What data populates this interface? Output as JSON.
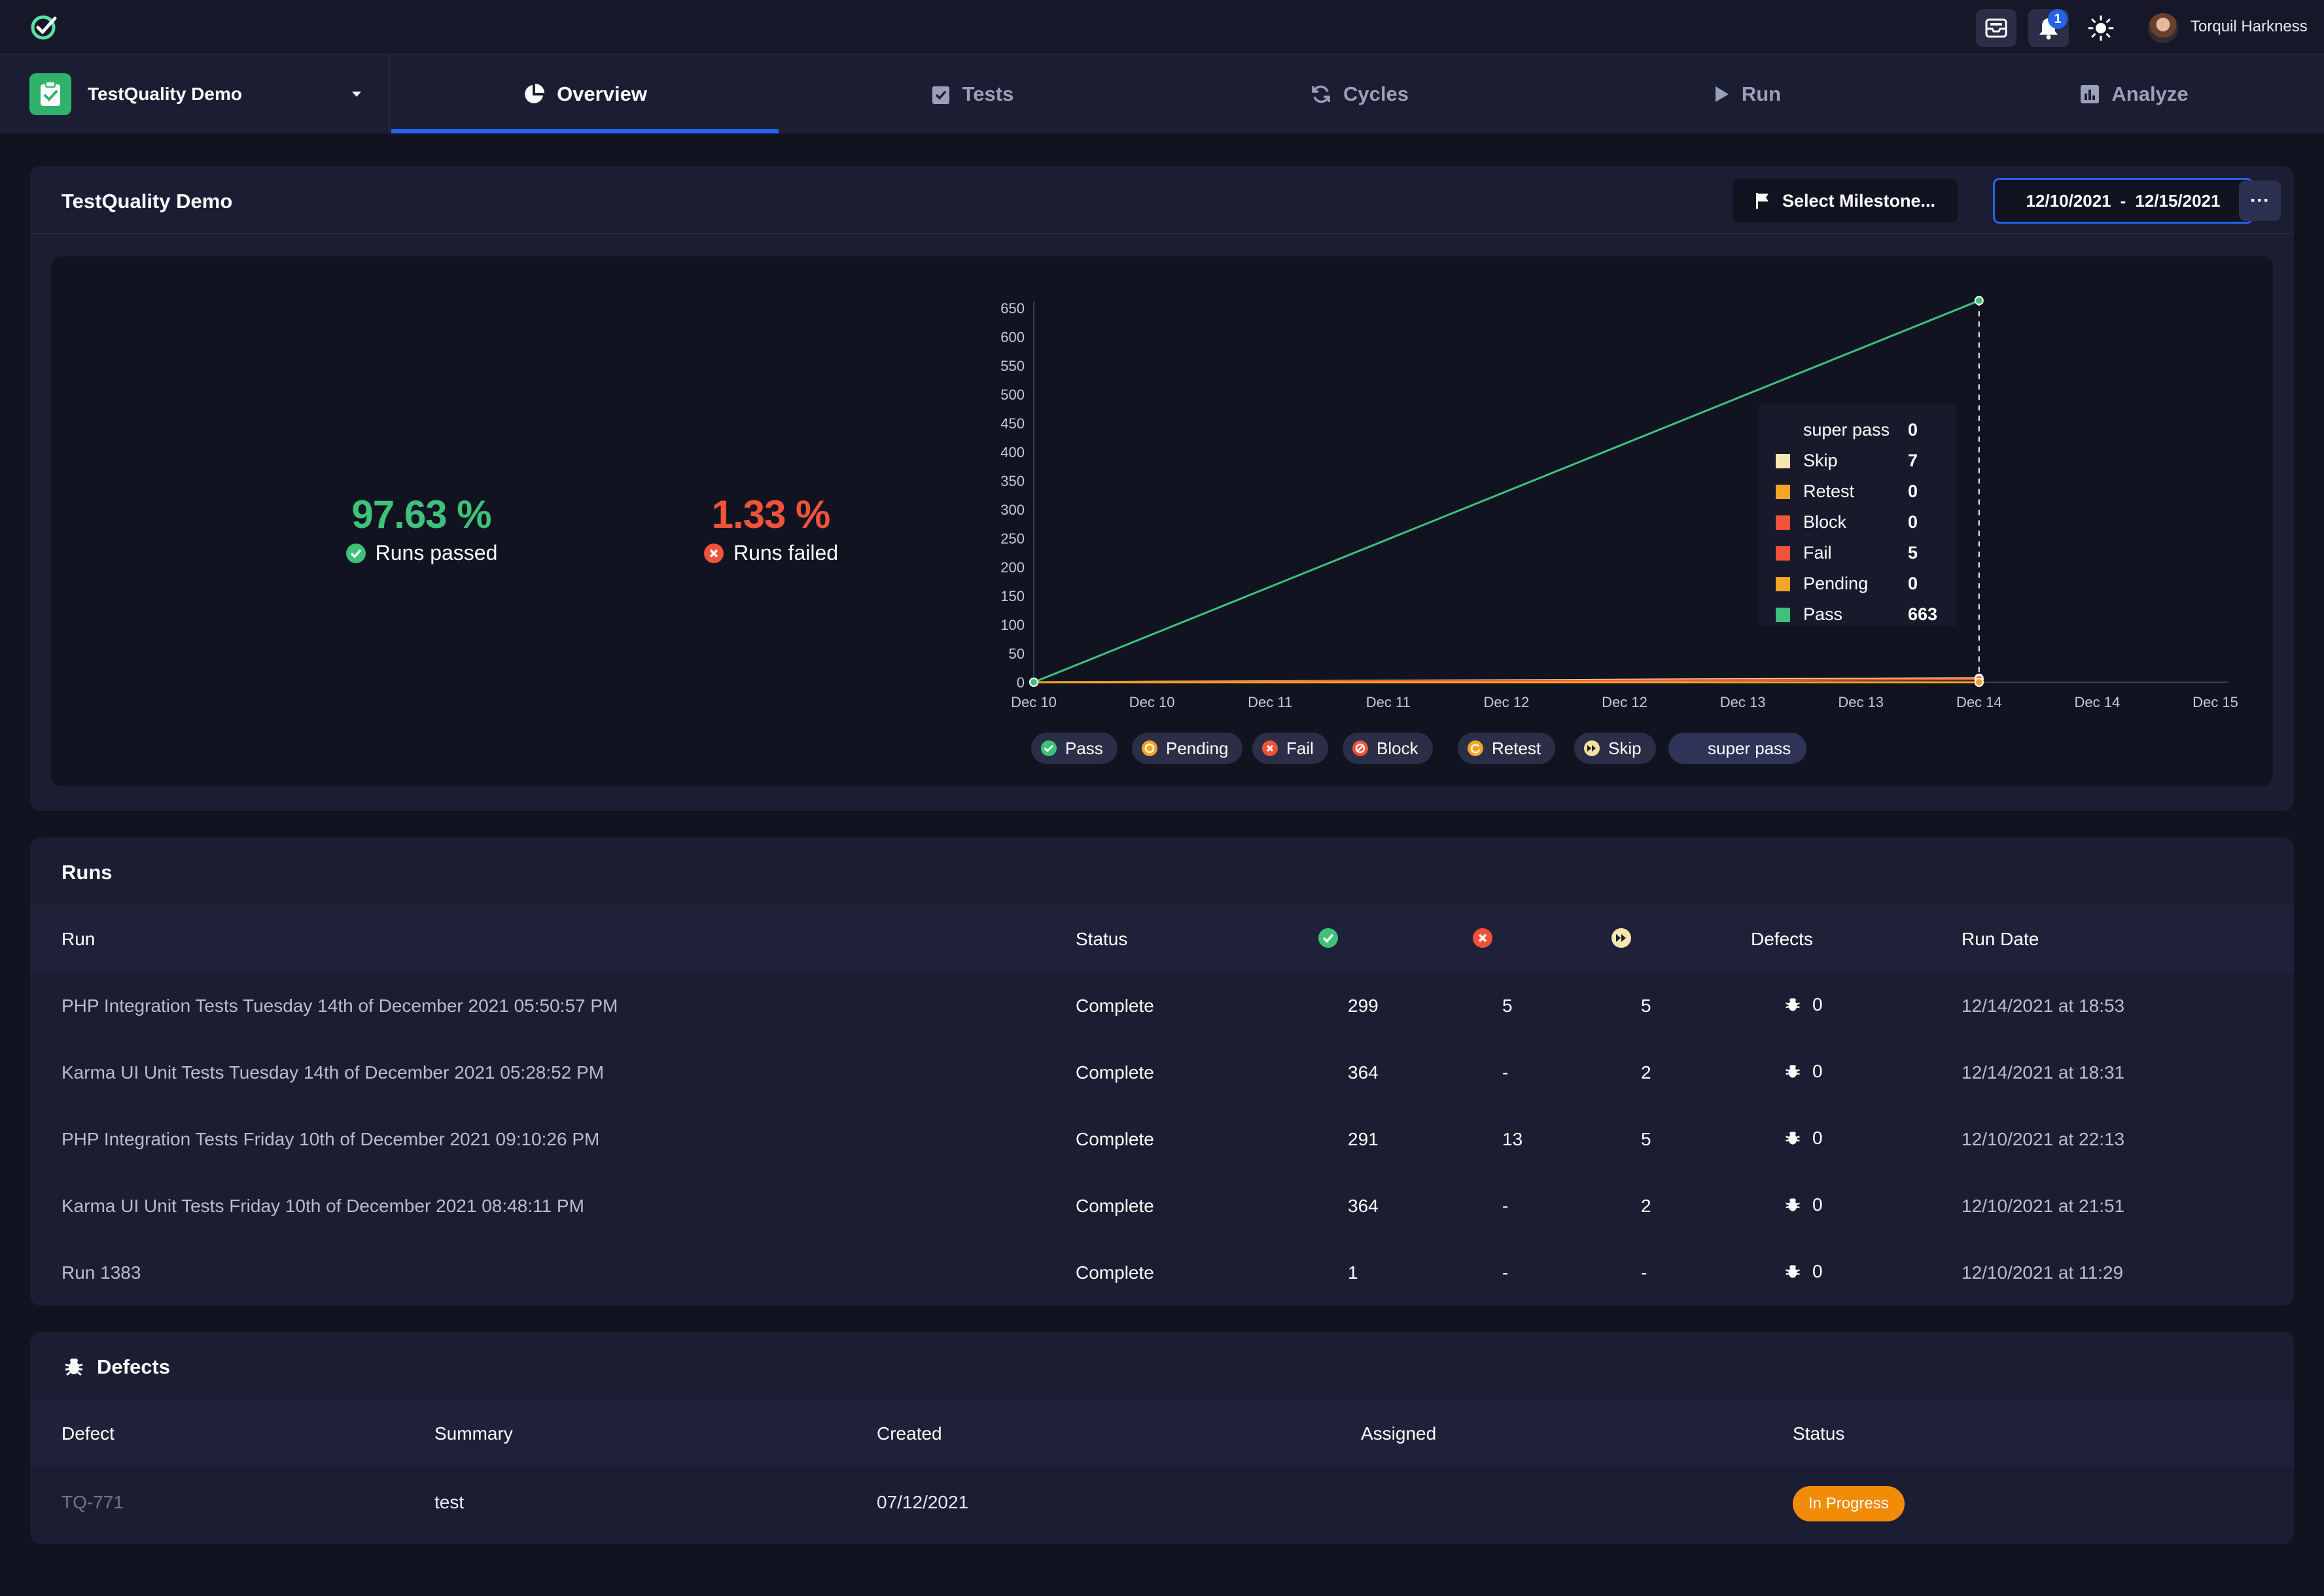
{
  "topbar": {
    "user_name": "Torquil Harkness",
    "notification_count": "1",
    "icons": [
      "app-logo-icon",
      "inbox-icon",
      "bell-icon",
      "sun-icon"
    ]
  },
  "nav": {
    "project_name": "TestQuality Demo",
    "tabs": [
      {
        "label": "Overview",
        "icon": "pie-chart-icon",
        "active": true
      },
      {
        "label": "Tests",
        "icon": "clipboard-check-icon",
        "active": false
      },
      {
        "label": "Cycles",
        "icon": "cycle-icon",
        "active": false
      },
      {
        "label": "Run",
        "icon": "play-icon",
        "active": false
      },
      {
        "label": "Analyze",
        "icon": "bar-chart-icon",
        "active": false
      }
    ]
  },
  "overview": {
    "title": "TestQuality Demo",
    "milestone_label": "Select Milestone...",
    "date_start": "12/10/2021",
    "date_separator": "-",
    "date_end": "12/15/2021",
    "more_label": "···",
    "runs_passed_value": "97.63 %",
    "runs_passed_label": "Runs passed",
    "runs_failed_value": "1.33 %",
    "runs_failed_label": "Runs failed"
  },
  "chart_data": {
    "type": "line",
    "x": [
      "Dec 10",
      "Dec 10",
      "Dec 11",
      "Dec 11",
      "Dec 12",
      "Dec 12",
      "Dec 13",
      "Dec 13",
      "Dec 14",
      "Dec 14",
      "Dec 15"
    ],
    "x_positions_index": [
      0,
      8
    ],
    "yticks": [
      0,
      50,
      100,
      150,
      200,
      250,
      300,
      350,
      400,
      450,
      500,
      550,
      600,
      650
    ],
    "ylim": [
      0,
      650
    ],
    "series": [
      {
        "name": "Pass",
        "color": "#3ec27a",
        "points": [
          [
            0,
            0
          ],
          [
            8,
            663
          ]
        ]
      },
      {
        "name": "Pending",
        "color": "#f5a524",
        "points": [
          [
            0,
            0
          ],
          [
            8,
            0
          ]
        ]
      },
      {
        "name": "Fail",
        "color": "#f0533a",
        "points": [
          [
            0,
            0
          ],
          [
            8,
            5
          ]
        ]
      },
      {
        "name": "Block",
        "color": "#f0533a",
        "points": [
          [
            0,
            0
          ],
          [
            8,
            0
          ]
        ]
      },
      {
        "name": "Retest",
        "color": "#f5a524",
        "points": [
          [
            0,
            0
          ],
          [
            8,
            0
          ]
        ]
      },
      {
        "name": "Skip",
        "color": "#f5e0a0",
        "points": [
          [
            0,
            0
          ],
          [
            8,
            7
          ]
        ]
      },
      {
        "name": "super pass",
        "color": "#2a2e47",
        "points": [
          [
            0,
            0
          ],
          [
            8,
            0
          ]
        ]
      }
    ],
    "legend": [
      {
        "label": "Pass",
        "icon": "check-circle-icon",
        "color": "#3ec27a"
      },
      {
        "label": "Pending",
        "icon": "clock-icon",
        "color": "#f5a524"
      },
      {
        "label": "Fail",
        "icon": "x-circle-icon",
        "color": "#f0533a"
      },
      {
        "label": "Block",
        "icon": "block-icon",
        "color": "#f0533a"
      },
      {
        "label": "Retest",
        "icon": "retest-icon",
        "color": "#f5a524"
      },
      {
        "label": "Skip",
        "icon": "skip-icon",
        "color": "#f5e0a0"
      },
      {
        "label": "super pass",
        "icon": "",
        "color": ""
      }
    ],
    "tooltip": [
      {
        "label": "super pass",
        "value": "0",
        "color": ""
      },
      {
        "label": "Skip",
        "value": "7",
        "color": "#f7e6b0"
      },
      {
        "label": "Retest",
        "value": "0",
        "color": "#f5a524"
      },
      {
        "label": "Block",
        "value": "0",
        "color": "#f0533a"
      },
      {
        "label": "Fail",
        "value": "5",
        "color": "#f0533a"
      },
      {
        "label": "Pending",
        "value": "0",
        "color": "#f5a524"
      },
      {
        "label": "Pass",
        "value": "663",
        "color": "#3ec27a"
      }
    ]
  },
  "runs": {
    "title": "Runs",
    "headers": {
      "run": "Run",
      "status": "Status",
      "defects": "Defects",
      "run_date": "Run Date"
    },
    "header_icons": [
      "pass-circle-icon",
      "fail-circle-icon",
      "skip-circle-icon"
    ],
    "rows": [
      {
        "run": "PHP Integration Tests Tuesday 14th of December 2021 05:50:57 PM",
        "status": "Complete",
        "pass": "299",
        "fail": "5",
        "skip": "5",
        "defects": "0",
        "date": "12/14/2021 at 18:53"
      },
      {
        "run": "Karma UI Unit Tests Tuesday 14th of December 2021 05:28:52 PM",
        "status": "Complete",
        "pass": "364",
        "fail": "-",
        "skip": "2",
        "defects": "0",
        "date": "12/14/2021 at 18:31"
      },
      {
        "run": "PHP Integration Tests Friday 10th of December 2021 09:10:26 PM",
        "status": "Complete",
        "pass": "291",
        "fail": "13",
        "skip": "5",
        "defects": "0",
        "date": "12/10/2021 at 22:13"
      },
      {
        "run": "Karma UI Unit Tests Friday 10th of December 2021 08:48:11 PM",
        "status": "Complete",
        "pass": "364",
        "fail": "-",
        "skip": "2",
        "defects": "0",
        "date": "12/10/2021 at 21:51"
      },
      {
        "run": "Run 1383",
        "status": "Complete",
        "pass": "1",
        "fail": "-",
        "skip": "-",
        "defects": "0",
        "date": "12/10/2021 at 11:29"
      }
    ]
  },
  "defects": {
    "title": "Defects",
    "headers": {
      "defect": "Defect",
      "summary": "Summary",
      "created": "Created",
      "assigned": "Assigned",
      "status": "Status"
    },
    "rows": [
      {
        "defect": "TQ-771",
        "summary": "test",
        "created": "07/12/2021",
        "assigned": "",
        "status": "In Progress"
      }
    ]
  },
  "colors": {
    "accent": "#2563eb",
    "pass": "#3ec27a",
    "fail": "#f0533a",
    "in_progress": "#f28c06"
  }
}
